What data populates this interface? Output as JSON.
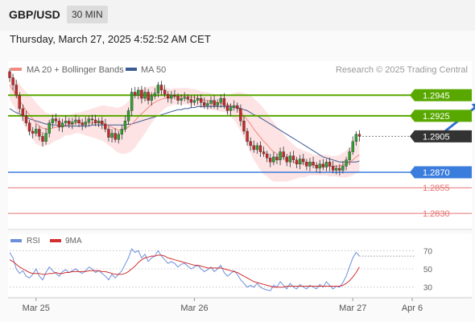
{
  "header": {
    "symbol": "GBP/USD",
    "timeframe": "30 MIN"
  },
  "timestamp": "Thursday, March 27, 2025 4:52:52 AM CET",
  "legend": {
    "ma20": "MA 20 + Bollinger Bands",
    "ma50": "MA 50"
  },
  "copyright": "Research © 2025 Trading Central",
  "rsi_legend": {
    "rsi": "RSI",
    "ma": "9MA"
  },
  "colors": {
    "bull": "#2ea02e",
    "bear": "#c62828",
    "ma20": "#f28b82",
    "ma50": "#3b5b92",
    "band": "#fde0e0",
    "resistance": "#58a800",
    "pivot": "#3b7ddd",
    "support": "#e57373",
    "price": "#333333",
    "rsi": "#6b8fdc",
    "rsi_ma": "#d32f2f"
  },
  "chart_data": [
    {
      "type": "candlestick",
      "series_names": [
        "MA 20 + Bollinger Bands",
        "MA 50"
      ],
      "ylim": [
        1.2816,
        1.2975
      ],
      "time_labels": [
        {
          "label": "Mar 25",
          "t": 8
        },
        {
          "label": "Mar 26",
          "t": 56
        },
        {
          "label": "Mar 27",
          "t": 104
        },
        {
          "label": "Apr 6",
          "t": 122
        }
      ],
      "t_max": 122,
      "levels": [
        {
          "value": 1.2945,
          "label": "1.2945",
          "kind": "resistance"
        },
        {
          "value": 1.2925,
          "label": "1.2925",
          "kind": "resistance"
        },
        {
          "value": 1.2905,
          "label": "1.2905",
          "kind": "price"
        },
        {
          "value": 1.287,
          "label": "1.2870",
          "kind": "pivot"
        },
        {
          "value": 1.2855,
          "label": "1.2855",
          "kind": "support"
        },
        {
          "value": 1.283,
          "label": "1.2830",
          "kind": "support"
        }
      ],
      "arrow": {
        "from": [
          1.2905,
          130
        ],
        "to": [
          1.2938,
          143
        ]
      },
      "close": [
        1.2962,
        1.2955,
        1.2945,
        1.2932,
        1.2925,
        1.2918,
        1.291,
        1.2908,
        1.2912,
        1.2905,
        1.29,
        1.2908,
        1.2918,
        1.2922,
        1.292,
        1.2914,
        1.2918,
        1.292,
        1.2917,
        1.2919,
        1.2921,
        1.2918,
        1.2916,
        1.2919,
        1.2922,
        1.2921,
        1.2918,
        1.292,
        1.2917,
        1.2912,
        1.2904,
        1.2908,
        1.2902,
        1.2907,
        1.2912,
        1.292,
        1.293,
        1.2948,
        1.2945,
        1.295,
        1.2942,
        1.2948,
        1.294,
        1.2944,
        1.2947,
        1.2955,
        1.295,
        1.2946,
        1.2942,
        1.2945,
        1.2944,
        1.294,
        1.2942,
        1.2943,
        1.2941,
        1.2938,
        1.294,
        1.2942,
        1.2938,
        1.2935,
        1.2937,
        1.294,
        1.2935,
        1.2938,
        1.2942,
        1.2935,
        1.293,
        1.2933,
        1.2935,
        1.2932,
        1.292,
        1.291,
        1.29,
        1.2896,
        1.2892,
        1.2896,
        1.289,
        1.2888,
        1.2884,
        1.288,
        1.2885,
        1.2882,
        1.289,
        1.2885,
        1.288,
        1.2886,
        1.2882,
        1.2878,
        1.2883,
        1.288,
        1.2876,
        1.288,
        1.2877,
        1.2874,
        1.2878,
        1.2875,
        1.288,
        1.2876,
        1.2872,
        1.2874,
        1.2872,
        1.2876,
        1.2882,
        1.289,
        1.29,
        1.2907,
        1.2905
      ],
      "ma20": [
        1.2955,
        1.295,
        1.2945,
        1.294,
        1.2935,
        1.293,
        1.2926,
        1.2922,
        1.2918,
        1.2915,
        1.2913,
        1.2912,
        1.2912,
        1.2913,
        1.2914,
        1.2914,
        1.2915,
        1.2916,
        1.2916,
        1.2917,
        1.2918,
        1.2918,
        1.2918,
        1.2918,
        1.2918,
        1.2918,
        1.2918,
        1.2918,
        1.2918,
        1.2917,
        1.2915,
        1.2914,
        1.2912,
        1.2911,
        1.2911,
        1.2912,
        1.2914,
        1.2917,
        1.292,
        1.2924,
        1.2927,
        1.293,
        1.2933,
        1.2936,
        1.2938,
        1.294,
        1.2941,
        1.2942,
        1.2943,
        1.2943,
        1.2944,
        1.2944,
        1.2944,
        1.2944,
        1.2944,
        1.2943,
        1.2943,
        1.2942,
        1.2941,
        1.294,
        1.294,
        1.2939,
        1.2938,
        1.2938,
        1.2937,
        1.2937,
        1.2936,
        1.2935,
        1.2934,
        1.2932,
        1.2929,
        1.2925,
        1.2921,
        1.2917,
        1.2912,
        1.2908,
        1.2904,
        1.29,
        1.2897,
        1.2893,
        1.289,
        1.2888,
        1.2886,
        1.2884,
        1.2882,
        1.2881,
        1.288,
        1.2879,
        1.2879,
        1.2878,
        1.2878,
        1.2878,
        1.2877,
        1.2877,
        1.2877,
        1.2877,
        1.2877,
        1.2876,
        1.2876,
        1.2876,
        1.2876,
        1.2877,
        1.2878,
        1.288,
        1.2882,
        1.2885,
        1.2887
      ],
      "ma50": [
        1.2932,
        1.293,
        1.2928,
        1.2927,
        1.2925,
        1.2924,
        1.2922,
        1.2921,
        1.292,
        1.2919,
        1.2918,
        1.2917,
        1.2917,
        1.2916,
        1.2916,
        1.2915,
        1.2915,
        1.2915,
        1.2915,
        1.2915,
        1.2915,
        1.2915,
        1.2915,
        1.2915,
        1.2915,
        1.2916,
        1.2916,
        1.2916,
        1.2916,
        1.2916,
        1.2916,
        1.2916,
        1.2916,
        1.2916,
        1.2916,
        1.2916,
        1.2917,
        1.2917,
        1.2918,
        1.2919,
        1.292,
        1.2921,
        1.2922,
        1.2923,
        1.2924,
        1.2925,
        1.2926,
        1.2927,
        1.2928,
        1.2929,
        1.293,
        1.2931,
        1.2931,
        1.2932,
        1.2932,
        1.2933,
        1.2933,
        1.2934,
        1.2934,
        1.2934,
        1.2934,
        1.2934,
        1.2934,
        1.2934,
        1.2934,
        1.2934,
        1.2934,
        1.2934,
        1.2933,
        1.2933,
        1.2932,
        1.2931,
        1.293,
        1.2928,
        1.2926,
        1.2925,
        1.2923,
        1.2921,
        1.2919,
        1.2917,
        1.2915,
        1.2913,
        1.2911,
        1.2909,
        1.2907,
        1.2905,
        1.2903,
        1.2901,
        1.2899,
        1.2897,
        1.2895,
        1.2893,
        1.2891,
        1.2889,
        1.2887,
        1.2885,
        1.2884,
        1.2883,
        1.2882,
        1.2881,
        1.288,
        1.288,
        1.288,
        1.288,
        1.288,
        1.288,
        1.2881
      ],
      "band_width": [
        0.0014,
        0.0014,
        0.0015,
        0.0016,
        0.0017,
        0.0018,
        0.0019,
        0.002,
        0.002,
        0.0019,
        0.0018,
        0.0016,
        0.0015,
        0.0014,
        0.0013,
        0.0012,
        0.0011,
        0.001,
        0.001,
        0.001,
        0.001,
        0.001,
        0.0011,
        0.0012,
        0.0013,
        0.0014,
        0.0015,
        0.0016,
        0.0017,
        0.0018,
        0.0019,
        0.002,
        0.0021,
        0.0022,
        0.0023,
        0.0024,
        0.0025,
        0.0026,
        0.0026,
        0.0025,
        0.0024,
        0.0022,
        0.002,
        0.0018,
        0.0016,
        0.0014,
        0.0012,
        0.001,
        0.0009,
        0.0008,
        0.0008,
        0.0008,
        0.0008,
        0.0008,
        0.0008,
        0.0008,
        0.0008,
        0.0008,
        0.0008,
        0.0008,
        0.0008,
        0.0008,
        0.0008,
        0.0008,
        0.0008,
        0.0008,
        0.0009,
        0.0011,
        0.0013,
        0.0016,
        0.0019,
        0.0022,
        0.0025,
        0.0028,
        0.003,
        0.0031,
        0.0032,
        0.0032,
        0.0031,
        0.003,
        0.0029,
        0.0027,
        0.0025,
        0.0023,
        0.0021,
        0.0019,
        0.0017,
        0.0015,
        0.0014,
        0.0013,
        0.0012,
        0.0011,
        0.001,
        0.001,
        0.001,
        0.001,
        0.001,
        0.001,
        0.001,
        0.001,
        0.0011,
        0.0012,
        0.0013,
        0.0014,
        0.0015,
        0.0016,
        0.0017
      ]
    },
    {
      "type": "line",
      "series_names": [
        "RSI",
        "9MA"
      ],
      "ylim": [
        20,
        80
      ],
      "ticks": [
        {
          "value": 70,
          "label": "70"
        },
        {
          "value": 50,
          "label": "50"
        },
        {
          "value": 30,
          "label": "30"
        }
      ],
      "rsi": [
        68,
        62,
        50,
        45,
        48,
        42,
        40,
        44,
        50,
        42,
        38,
        46,
        52,
        48,
        45,
        42,
        47,
        49,
        46,
        48,
        50,
        47,
        45,
        48,
        52,
        50,
        46,
        48,
        45,
        42,
        38,
        44,
        40,
        44,
        48,
        55,
        62,
        72,
        68,
        70,
        62,
        66,
        58,
        62,
        64,
        70,
        64,
        60,
        56,
        58,
        56,
        52,
        55,
        56,
        53,
        50,
        52,
        54,
        50,
        47,
        49,
        52,
        47,
        50,
        54,
        46,
        42,
        45,
        48,
        44,
        38,
        34,
        30,
        32,
        30,
        34,
        30,
        28,
        27,
        26,
        32,
        30,
        36,
        32,
        28,
        34,
        30,
        28,
        33,
        30,
        28,
        32,
        30,
        28,
        33,
        30,
        36,
        32,
        28,
        31,
        30,
        35,
        42,
        52,
        62,
        68,
        64
      ],
      "rsi_ma": [
        60,
        58,
        55,
        52,
        50,
        48,
        46,
        45,
        45,
        45,
        44,
        44,
        45,
        45,
        46,
        45,
        45,
        46,
        46,
        47,
        47,
        47,
        47,
        47,
        48,
        48,
        48,
        48,
        47,
        47,
        46,
        45,
        44,
        44,
        44,
        45,
        47,
        50,
        53,
        57,
        60,
        62,
        63,
        64,
        64,
        65,
        65,
        64,
        62,
        61,
        60,
        59,
        58,
        57,
        56,
        55,
        54,
        54,
        53,
        52,
        51,
        51,
        51,
        51,
        51,
        50,
        49,
        48,
        47,
        46,
        44,
        42,
        40,
        38,
        36,
        35,
        34,
        33,
        32,
        31,
        30,
        30,
        30,
        30,
        31,
        31,
        31,
        31,
        31,
        31,
        31,
        31,
        31,
        31,
        31,
        31,
        31,
        31,
        31,
        31,
        31,
        32,
        34,
        37,
        41,
        46,
        52
      ]
    }
  ]
}
